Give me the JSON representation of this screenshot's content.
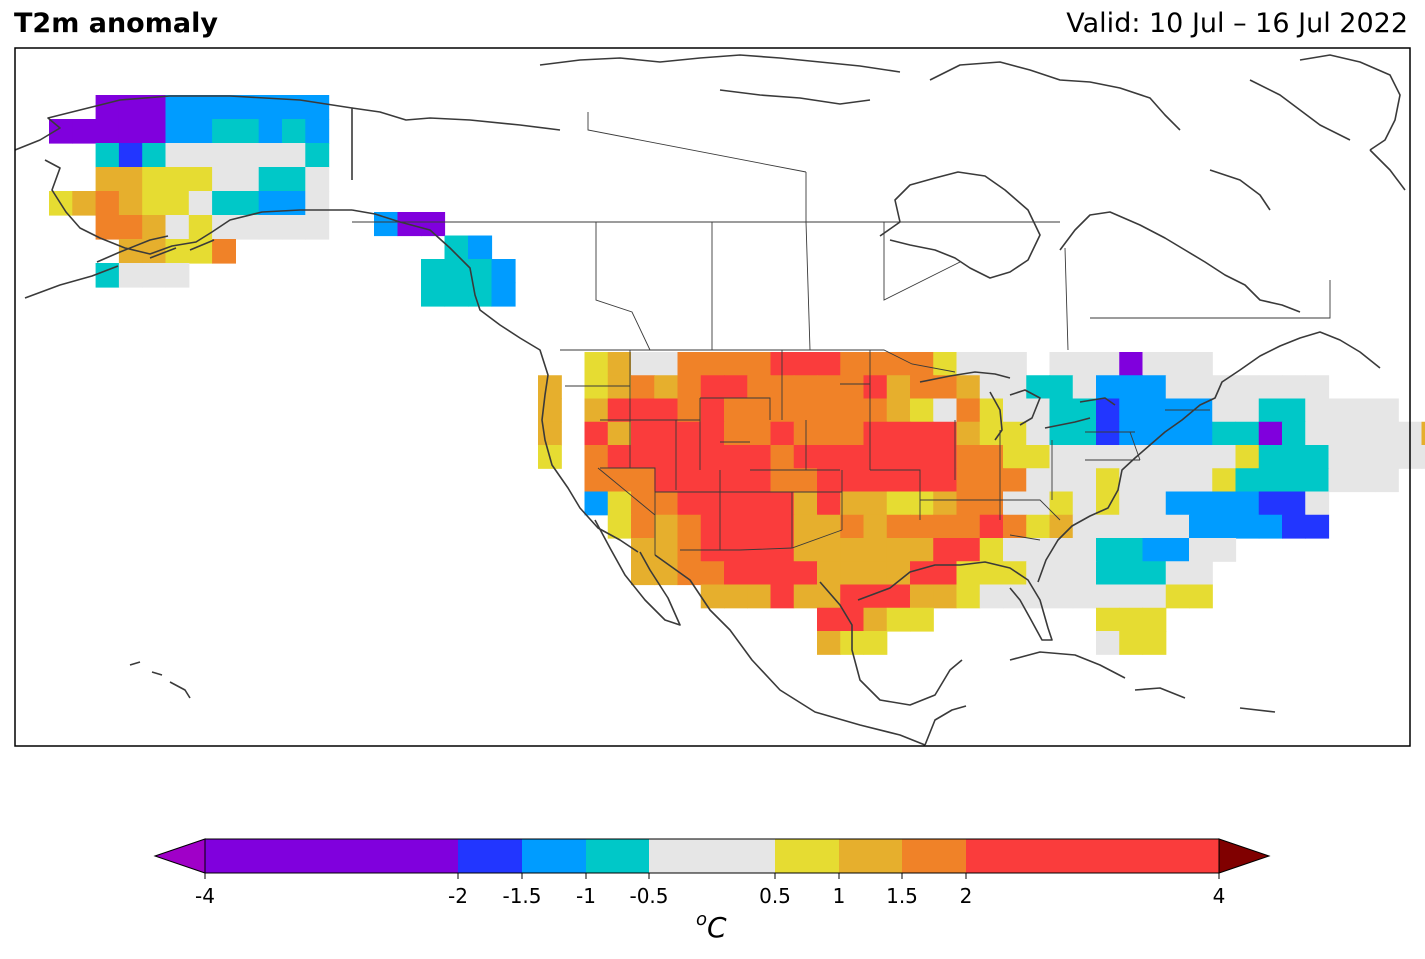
{
  "header": {
    "title": "T2m anomaly",
    "valid": "Valid: 10 Jul – 16 Jul 2022"
  },
  "colorbar": {
    "unit_prefix": "o",
    "unit": "C",
    "ticks": [
      "-4",
      "-2",
      "-1.5",
      "-1",
      "-0.5",
      "0.5",
      "1",
      "1.5",
      "2",
      "4"
    ],
    "bins": [
      {
        "from": -4,
        "to": -2,
        "color": "#8000dd"
      },
      {
        "from": -2,
        "to": -1.5,
        "color": "#2236ff"
      },
      {
        "from": -1.5,
        "to": -1,
        "color": "#009cff"
      },
      {
        "from": -1,
        "to": -0.5,
        "color": "#00c8c8"
      },
      {
        "from": -0.5,
        "to": 0.5,
        "color": "#e6e6e6"
      },
      {
        "from": 0.5,
        "to": 1,
        "color": "#e6dc32"
      },
      {
        "from": 1,
        "to": 1.5,
        "color": "#e6af2d"
      },
      {
        "from": 1.5,
        "to": 2,
        "color": "#f08228"
      },
      {
        "from": 2,
        "to": 4,
        "color": "#fa3c3c"
      }
    ],
    "under_color": "#a000c8",
    "over_color": "#800000"
  }
}
